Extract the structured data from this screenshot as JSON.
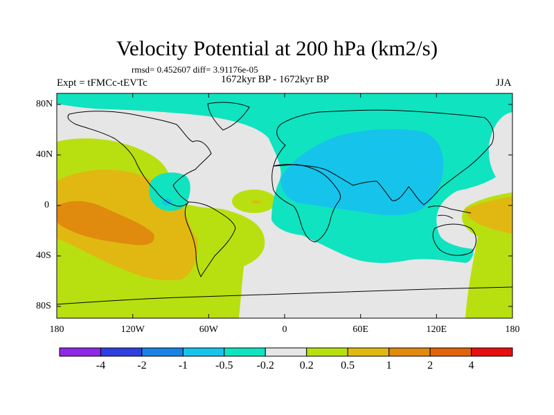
{
  "title": "Velocity Potential at 200 hPa (km2/s)",
  "stats": "rmsd= 0.452607 diff= 3.91176e-05",
  "left_label": "Expt = tFMCc-tEVTc",
  "center_label": "1672kyr BP - 1672kyr BP",
  "right_label": "JJA",
  "map": {
    "projection": "cylindrical equidistant",
    "lat_labels": [
      "80N",
      "40N",
      "0",
      "40S",
      "80S"
    ],
    "lon_labels": [
      "180",
      "120W",
      "60W",
      "0",
      "60E",
      "120E",
      "180"
    ]
  },
  "colorbar": {
    "colors": [
      "#8f29e8",
      "#2e40e0",
      "#1a82e6",
      "#16c3eb",
      "#10e3c0",
      "#e6e6e6",
      "#b8e010",
      "#e0b811",
      "#e08a0e",
      "#e0640e",
      "#e60f0f"
    ],
    "labels": [
      "-4",
      "-2",
      "-1",
      "-0.5",
      "-0.2",
      "0.2",
      "0.5",
      "1",
      "2",
      "4"
    ]
  }
}
